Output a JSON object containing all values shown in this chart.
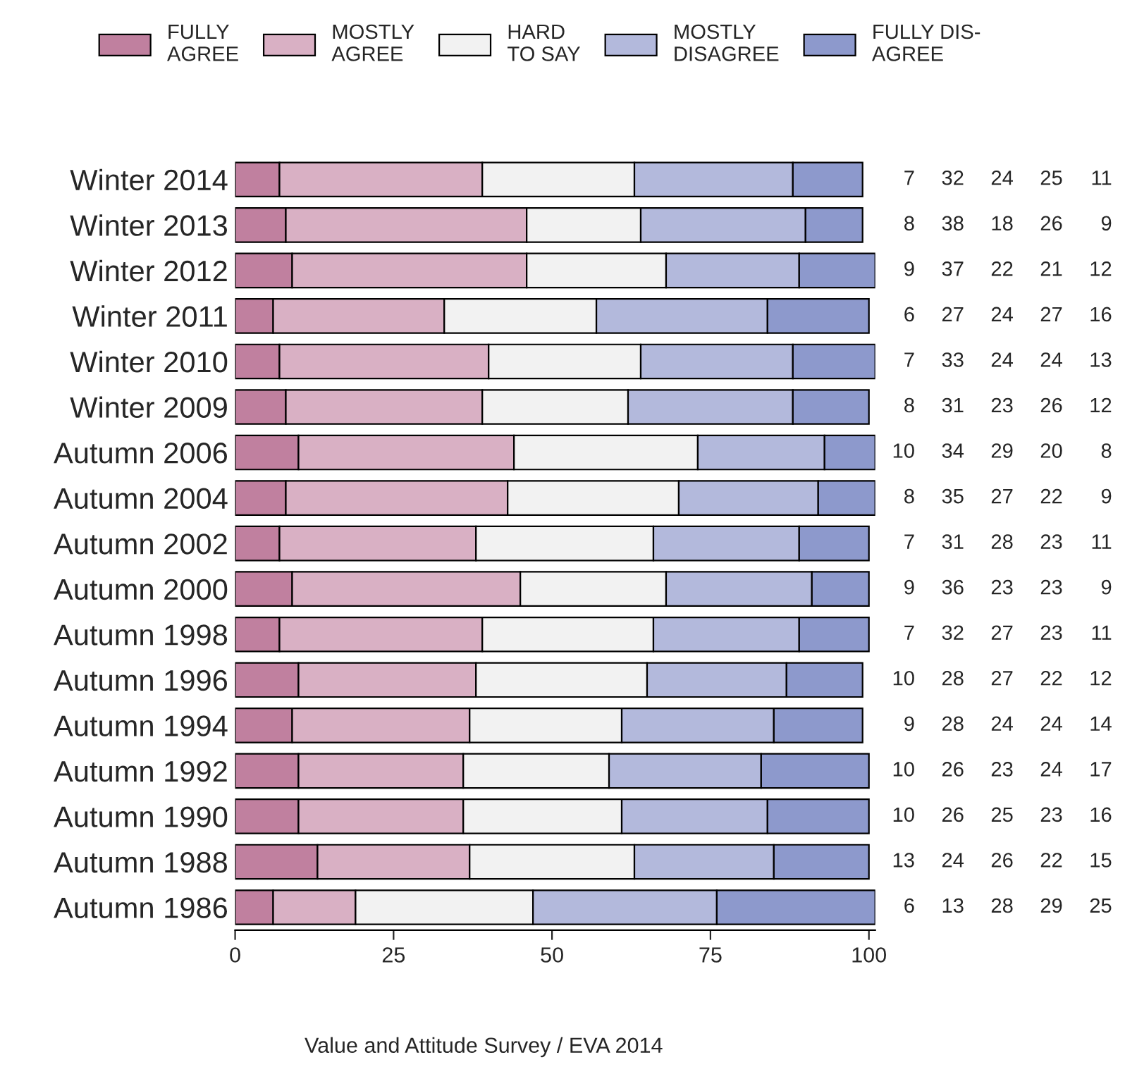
{
  "chart_data": {
    "type": "bar",
    "orientation": "horizontal",
    "stacked": true,
    "data_labels": true,
    "legend": "top",
    "grid": false,
    "categories": [
      "Winter 2014",
      "Winter 2013",
      "Winter 2012",
      "Winter 2011",
      "Winter 2010",
      "Winter 2009",
      "Autumn 2006",
      "Autumn 2004",
      "Autumn 2002",
      "Autumn 2000",
      "Autumn 1998",
      "Autumn 1996",
      "Autumn 1994",
      "Autumn 1992",
      "Autumn 1990",
      "Autumn 1988",
      "Autumn 1986"
    ],
    "series": [
      {
        "name": "FULLY\nAGREE",
        "color": "#c0809f",
        "values": [
          7,
          8,
          9,
          6,
          7,
          8,
          10,
          8,
          7,
          9,
          7,
          10,
          9,
          10,
          10,
          13,
          6
        ]
      },
      {
        "name": "MOSTLY\nAGREE",
        "color": "#d9b0c4",
        "values": [
          32,
          38,
          37,
          27,
          33,
          31,
          34,
          35,
          31,
          36,
          32,
          28,
          28,
          26,
          26,
          24,
          13
        ]
      },
      {
        "name": "HARD\nTO SAY",
        "color": "#f2f2f2",
        "values": [
          24,
          18,
          22,
          24,
          24,
          23,
          29,
          27,
          28,
          23,
          27,
          27,
          24,
          23,
          25,
          26,
          28
        ]
      },
      {
        "name": "MOSTLY\nDISAGREE",
        "color": "#b3b9dc",
        "values": [
          25,
          26,
          21,
          27,
          24,
          26,
          20,
          22,
          23,
          23,
          23,
          22,
          24,
          24,
          23,
          22,
          29
        ]
      },
      {
        "name": "FULLY DIS-\nAGREE",
        "color": "#8d99cc",
        "values": [
          11,
          9,
          12,
          16,
          13,
          12,
          8,
          9,
          11,
          9,
          11,
          12,
          14,
          17,
          16,
          15,
          25
        ]
      }
    ],
    "xlim": [
      0,
      101
    ],
    "xticks": [
      0,
      25,
      50,
      75,
      100
    ],
    "annotations": [
      "Value and Attitude Survey / EVA 2014"
    ]
  }
}
